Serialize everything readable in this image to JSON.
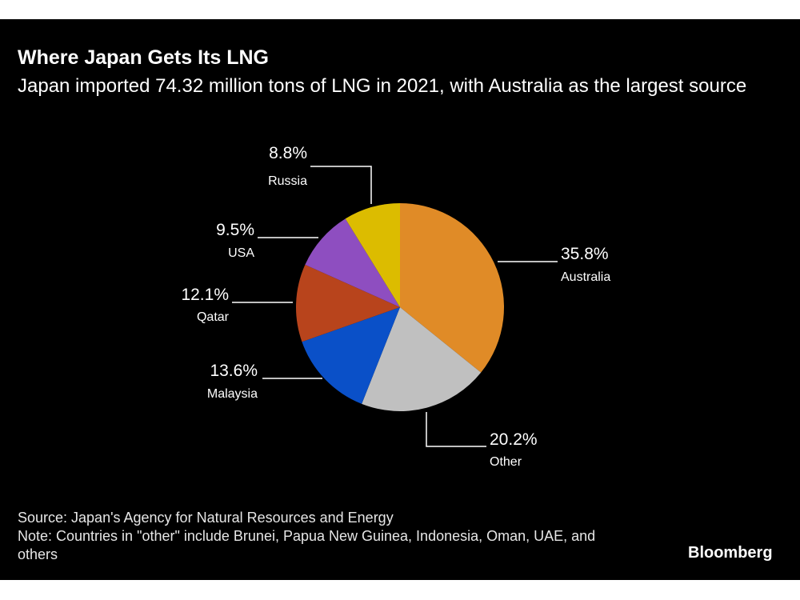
{
  "chart_data": {
    "type": "pie",
    "title": "Where Japan Gets Its LNG",
    "subtitle": "Japan imported 74.32 million tons of LNG in 2021, with Australia as the largest source",
    "slices": [
      {
        "label": "Australia",
        "value": 35.8,
        "text": "35.8%",
        "color": "#e08b27"
      },
      {
        "label": "Other",
        "value": 20.2,
        "text": "20.2%",
        "color": "#c0c0c0"
      },
      {
        "label": "Malaysia",
        "value": 13.6,
        "text": "13.6%",
        "color": "#0a50c8"
      },
      {
        "label": "Qatar",
        "value": 12.1,
        "text": "12.1%",
        "color": "#b8441c"
      },
      {
        "label": "USA",
        "value": 9.5,
        "text": "9.5%",
        "color": "#8e4ec0"
      },
      {
        "label": "Russia",
        "value": 8.8,
        "text": "8.8%",
        "color": "#dcbc00"
      }
    ]
  },
  "footer": {
    "source": "Source: Japan's Agency for Natural Resources and Energy",
    "note": "Note: Countries in \"other\" include Brunei, Papua New Guinea, Indonesia, Oman, UAE, and others"
  },
  "logo": "Bloomberg"
}
